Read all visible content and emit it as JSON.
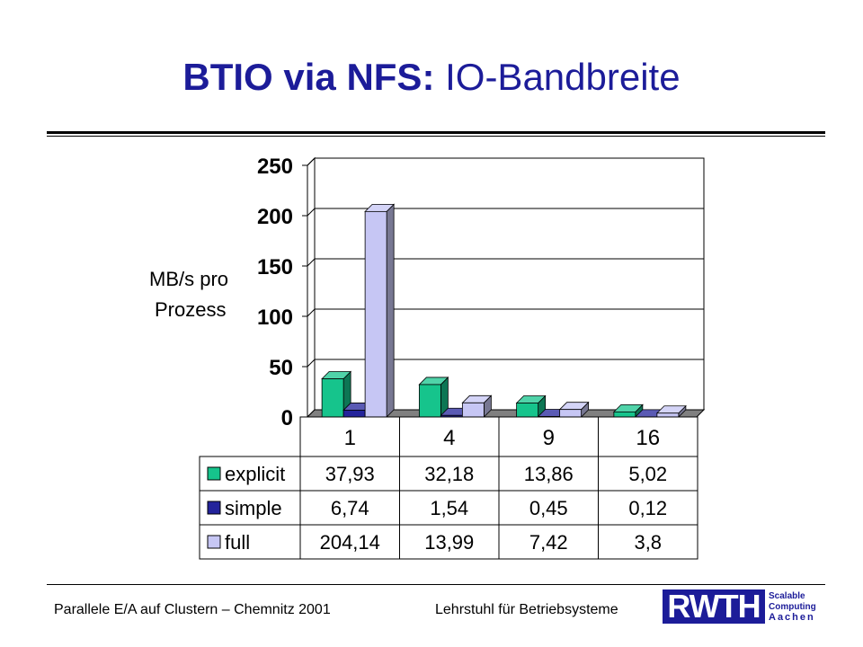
{
  "title": {
    "bold_part": "BTIO via NFS:",
    "normal_part": "IO-Bandbreite"
  },
  "footer": {
    "left": "Parallele E/A auf Clustern – Chemnitz 2001",
    "right": "Lehrstuhl für Betriebsysteme"
  },
  "logo": {
    "wordmark": "RWTH",
    "lines": [
      "Scalable",
      "Computing",
      "Aachen"
    ]
  },
  "colors": {
    "title": "#1c1c99",
    "explicit": "#16c48c",
    "simple": "#23239b",
    "full": "#c6c6f4"
  },
  "chart_data": {
    "type": "bar",
    "ylabel_lines": [
      "MB/s pro",
      "Prozess"
    ],
    "ylim": [
      0,
      250
    ],
    "yticks": [
      "0",
      "50",
      "100",
      "150",
      "200",
      "250"
    ],
    "categories": [
      "1",
      "4",
      "9",
      "16"
    ],
    "grid": true,
    "three_d": true,
    "legend": "data-table",
    "series": [
      {
        "name": "explicit",
        "values": [
          37.93,
          32.18,
          13.86,
          5.02
        ],
        "labels": [
          "37,93",
          "32,18",
          "13,86",
          "5,02"
        ]
      },
      {
        "name": "simple",
        "values": [
          6.74,
          1.54,
          0.45,
          0.12
        ],
        "labels": [
          "6,74",
          "1,54",
          "0,45",
          "0,12"
        ]
      },
      {
        "name": "full",
        "values": [
          204.14,
          13.99,
          7.42,
          3.8
        ],
        "labels": [
          "204,14",
          "13,99",
          "7,42",
          "3,8"
        ]
      }
    ]
  }
}
